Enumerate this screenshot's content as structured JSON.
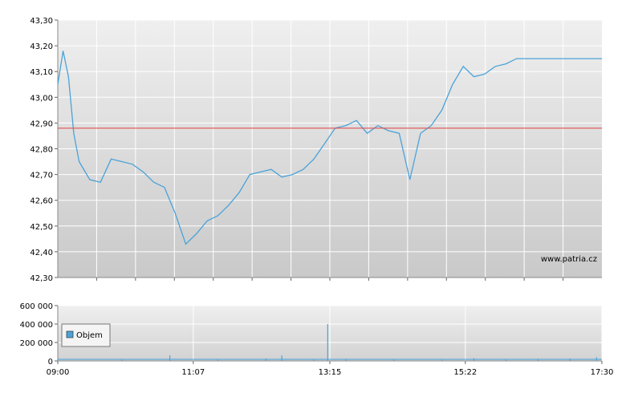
{
  "chart_data": [
    {
      "type": "line",
      "title": "",
      "xlabel": "",
      "ylabel": "",
      "ylim": [
        42.3,
        43.3
      ],
      "y_ticks": [
        "43,30",
        "43,20",
        "43,10",
        "43,00",
        "42,90",
        "42,80",
        "42,70",
        "42,60",
        "42,50",
        "42,40",
        "42,30"
      ],
      "y_tick_values": [
        43.3,
        43.2,
        43.1,
        43.0,
        42.9,
        42.8,
        42.7,
        42.6,
        42.5,
        42.4,
        42.3
      ],
      "reference_line": 42.88,
      "reference_color": "#e05050",
      "line_color": "#4aa3d8",
      "grid": true,
      "watermark": "www.patria.cz",
      "x_range": [
        "09:00",
        "17:30"
      ],
      "x": [
        "09:00",
        "09:05",
        "09:10",
        "09:15",
        "09:20",
        "09:30",
        "09:40",
        "09:50",
        "10:00",
        "10:10",
        "10:20",
        "10:30",
        "10:40",
        "10:50",
        "11:00",
        "11:10",
        "11:20",
        "11:30",
        "11:40",
        "11:50",
        "12:00",
        "12:10",
        "12:20",
        "12:30",
        "12:40",
        "12:50",
        "13:00",
        "13:10",
        "13:20",
        "13:30",
        "13:40",
        "13:50",
        "14:00",
        "14:10",
        "14:20",
        "14:30",
        "14:40",
        "14:50",
        "15:00",
        "15:10",
        "15:20",
        "15:30",
        "15:40",
        "15:50",
        "16:00",
        "16:10",
        "16:20",
        "16:30",
        "16:40",
        "16:50",
        "17:00",
        "17:10",
        "17:20",
        "17:30"
      ],
      "series": [
        {
          "values": [
            43.05,
            43.18,
            43.08,
            42.86,
            42.75,
            42.68,
            42.67,
            42.76,
            42.75,
            42.74,
            42.71,
            42.67,
            42.65,
            42.55,
            42.43,
            42.47,
            42.52,
            42.54,
            42.58,
            42.63,
            42.7,
            42.71,
            42.72,
            42.69,
            42.7,
            42.72,
            42.76,
            42.82,
            42.88,
            42.89,
            42.91,
            42.86,
            42.89,
            42.87,
            42.86,
            42.68,
            42.86,
            42.89,
            42.95,
            43.05,
            43.12,
            43.08,
            43.09,
            43.12,
            43.13,
            43.15,
            43.15,
            43.15,
            43.15,
            43.15,
            43.15,
            43.15,
            43.15,
            43.15
          ]
        }
      ]
    },
    {
      "type": "bar",
      "title": "",
      "ylim": [
        0,
        600000
      ],
      "y_ticks": [
        "600 000",
        "400 000",
        "200 000",
        "0"
      ],
      "y_tick_values": [
        600000,
        400000,
        200000,
        0
      ],
      "x_ticks": [
        "09:00",
        "11:07",
        "13:15",
        "15:22",
        "17:30"
      ],
      "legend": "Objem",
      "legend_placement": "left",
      "bar_color": "#4aa3d8",
      "grid": true,
      "x": [
        "09:00",
        "10:00",
        "10:45",
        "11:30",
        "12:15",
        "12:30",
        "13:00",
        "13:13",
        "13:30",
        "14:15",
        "15:00",
        "15:30",
        "16:00",
        "16:30",
        "17:00",
        "17:25"
      ],
      "values": [
        20000,
        12000,
        60000,
        15000,
        25000,
        60000,
        15000,
        400000,
        18000,
        14000,
        12000,
        30000,
        15000,
        20000,
        25000,
        40000
      ]
    }
  ]
}
